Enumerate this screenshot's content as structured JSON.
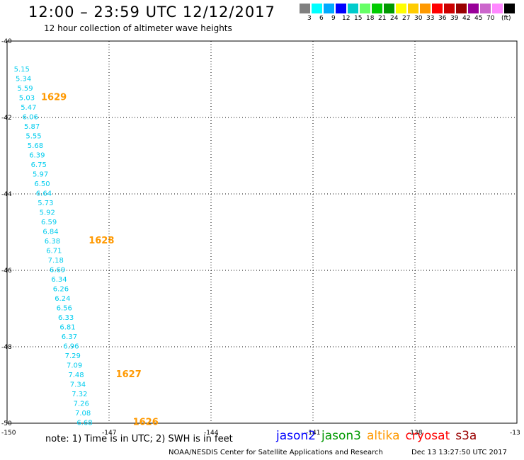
{
  "header": {
    "title": "12:00 – 23:59 UTC 12/12/2017",
    "subtitle": "12 hour collection of altimeter wave heights"
  },
  "legend": {
    "colors": [
      "#808080",
      "#00ffff",
      "#00aaff",
      "#0000ff",
      "#00cccc",
      "#66ff66",
      "#00cc00",
      "#009900",
      "#ffff00",
      "#ffcc00",
      "#ff9900",
      "#ff0000",
      "#cc0000",
      "#990000",
      "#990099",
      "#cc66cc",
      "#ff88ff",
      "#000000"
    ],
    "labels": [
      "3",
      "6",
      "9",
      "12",
      "15",
      "18",
      "21",
      "24",
      "27",
      "30",
      "33",
      "36",
      "39",
      "42",
      "45",
      "70",
      "(ft)"
    ]
  },
  "axes": {
    "lon_labels": [
      "-150",
      "-147",
      "-144",
      "-141",
      "-138",
      "-13"
    ],
    "lat_labels": [
      "-40",
      "-42",
      "-44",
      "-46",
      "-48",
      "-50"
    ]
  },
  "track": {
    "color": "#00ccee",
    "points": [
      {
        "lon": -149.8,
        "lat": -40.8,
        "swh": "5.15"
      },
      {
        "lon": -149.75,
        "lat": -41.05,
        "swh": "5.34"
      },
      {
        "lon": -149.7,
        "lat": -41.3,
        "swh": "5.59"
      },
      {
        "lon": -149.65,
        "lat": -41.55,
        "swh": "5.03"
      },
      {
        "lon": -149.6,
        "lat": -41.8,
        "swh": "5.47"
      },
      {
        "lon": -149.55,
        "lat": -42.05,
        "swh": "6.06"
      },
      {
        "lon": -149.5,
        "lat": -42.3,
        "swh": "5.87"
      },
      {
        "lon": -149.45,
        "lat": -42.55,
        "swh": "5.55"
      },
      {
        "lon": -149.4,
        "lat": -42.8,
        "swh": "5.68"
      },
      {
        "lon": -149.35,
        "lat": -43.05,
        "swh": "6.39"
      },
      {
        "lon": -149.3,
        "lat": -43.3,
        "swh": "6.75"
      },
      {
        "lon": -149.25,
        "lat": -43.55,
        "swh": "5.97"
      },
      {
        "lon": -149.2,
        "lat": -43.8,
        "swh": "6.50"
      },
      {
        "lon": -149.15,
        "lat": -44.05,
        "swh": "6.64"
      },
      {
        "lon": -149.1,
        "lat": -44.3,
        "swh": "5.73"
      },
      {
        "lon": -149.05,
        "lat": -44.55,
        "swh": "5.92"
      },
      {
        "lon": -149.0,
        "lat": -44.8,
        "swh": "6.59"
      },
      {
        "lon": -148.95,
        "lat": -45.05,
        "swh": "6.84"
      },
      {
        "lon": -148.9,
        "lat": -45.3,
        "swh": "6.38"
      },
      {
        "lon": -148.85,
        "lat": -45.55,
        "swh": "6.71"
      },
      {
        "lon": -148.8,
        "lat": -45.8,
        "swh": "7.18"
      },
      {
        "lon": -148.75,
        "lat": -46.05,
        "swh": "6.69"
      },
      {
        "lon": -148.7,
        "lat": -46.3,
        "swh": "6.34"
      },
      {
        "lon": -148.65,
        "lat": -46.55,
        "swh": "6.26"
      },
      {
        "lon": -148.6,
        "lat": -46.8,
        "swh": "6.24"
      },
      {
        "lon": -148.55,
        "lat": -47.05,
        "swh": "6.56"
      },
      {
        "lon": -148.5,
        "lat": -47.3,
        "swh": "6.33"
      },
      {
        "lon": -148.45,
        "lat": -47.55,
        "swh": "6.81"
      },
      {
        "lon": -148.4,
        "lat": -47.8,
        "swh": "6.37"
      },
      {
        "lon": -148.35,
        "lat": -48.05,
        "swh": "6.96"
      },
      {
        "lon": -148.3,
        "lat": -48.3,
        "swh": "7.29"
      },
      {
        "lon": -148.25,
        "lat": -48.55,
        "swh": "7.09"
      },
      {
        "lon": -148.2,
        "lat": -48.8,
        "swh": "7.48"
      },
      {
        "lon": -148.15,
        "lat": -49.05,
        "swh": "7.34"
      },
      {
        "lon": -148.1,
        "lat": -49.3,
        "swh": "7.32"
      },
      {
        "lon": -148.05,
        "lat": -49.55,
        "swh": "7.26"
      },
      {
        "lon": -148.0,
        "lat": -49.8,
        "swh": "7.08"
      },
      {
        "lon": -147.95,
        "lat": -50.05,
        "swh": "6.68"
      }
    ],
    "time_color": "#ff9900",
    "times": [
      {
        "lon": -149.0,
        "lat": -41.55,
        "label": "1629"
      },
      {
        "lon": -147.6,
        "lat": -45.3,
        "label": "1628"
      },
      {
        "lon": -146.8,
        "lat": -48.8,
        "label": "1627"
      },
      {
        "lon": -146.3,
        "lat": -50.05,
        "label": "1626"
      }
    ]
  },
  "footer": {
    "note": "note: 1) Time is in UTC; 2) SWH is in feet",
    "satellites": [
      {
        "name": "jason2",
        "color": "#0000ff"
      },
      {
        "name": "jason3",
        "color": "#009900"
      },
      {
        "name": "altika",
        "color": "#ff9900"
      },
      {
        "name": "cryosat",
        "color": "#ff0000"
      },
      {
        "name": "s3a",
        "color": "#990000"
      }
    ],
    "credit": "NOAA/NESDIS Center for Satellite Applications and Research",
    "timestamp": "Dec 13 13:27:50 UTC 2017"
  }
}
